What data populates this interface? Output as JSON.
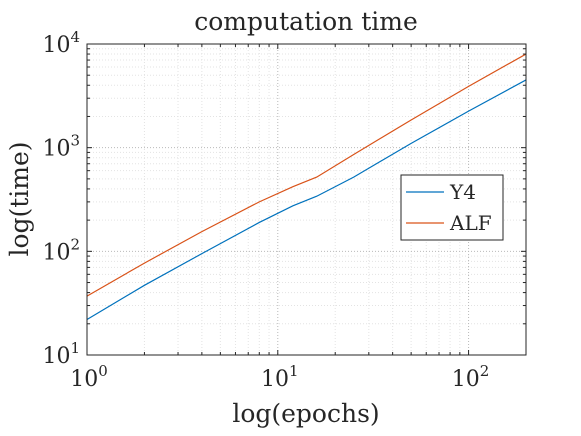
{
  "chart_data": {
    "type": "line",
    "title": "computation time",
    "xlabel": "log(epochs)",
    "ylabel": "log(time)",
    "xscale": "log",
    "yscale": "log",
    "xlim": [
      1,
      200
    ],
    "ylim": [
      10,
      10000
    ],
    "grid": true,
    "minor_grid": true,
    "legend_position": "right",
    "x_ticks": [
      {
        "base": "10",
        "exp": "0"
      },
      {
        "base": "10",
        "exp": "1"
      },
      {
        "base": "10",
        "exp": "2"
      }
    ],
    "y_ticks": [
      {
        "base": "10",
        "exp": "1"
      },
      {
        "base": "10",
        "exp": "2"
      },
      {
        "base": "10",
        "exp": "3"
      },
      {
        "base": "10",
        "exp": "4"
      }
    ],
    "series": [
      {
        "name": "Y4",
        "color": "#0072BD",
        "x": [
          1,
          2,
          4,
          8,
          12,
          16,
          25,
          50,
          100,
          200
        ],
        "y": [
          22,
          47,
          95,
          190,
          275,
          340,
          520,
          1100,
          2250,
          4500
        ]
      },
      {
        "name": "ALF",
        "color": "#D95319",
        "x": [
          1,
          2,
          4,
          8,
          12,
          16,
          25,
          50,
          100,
          200
        ],
        "y": [
          37,
          77,
          155,
          300,
          420,
          520,
          860,
          1850,
          3900,
          8000
        ]
      }
    ]
  }
}
